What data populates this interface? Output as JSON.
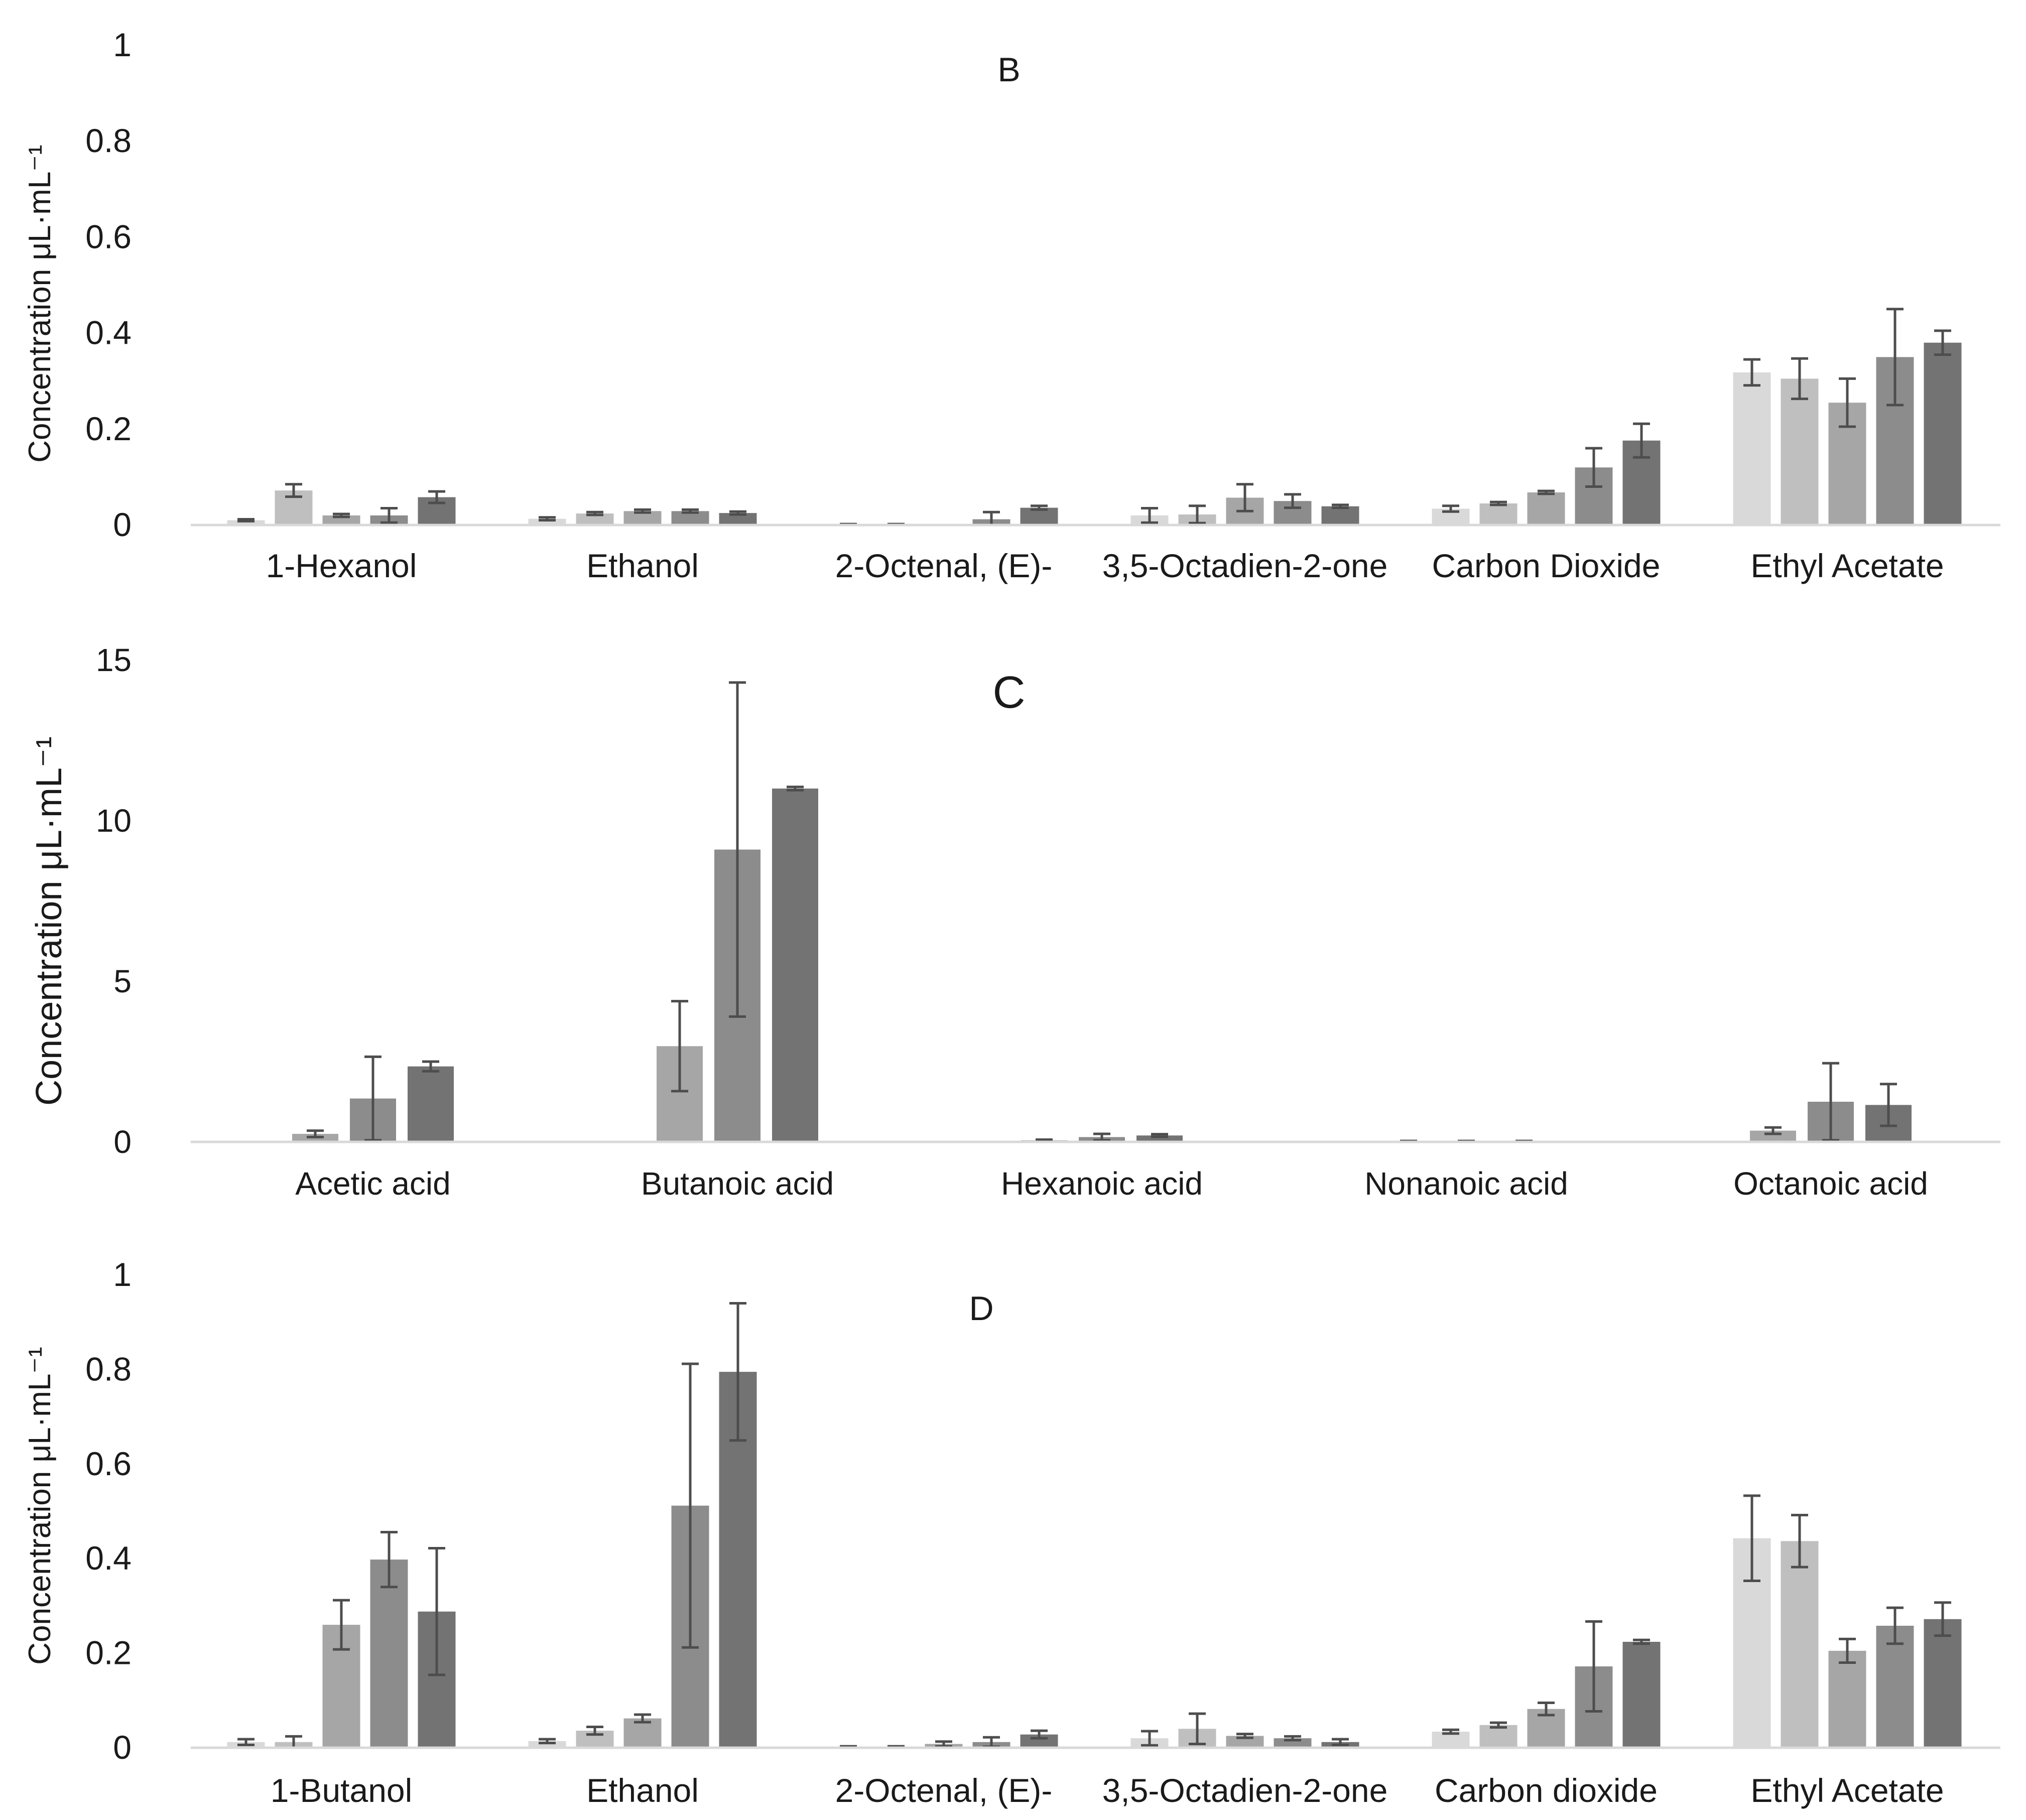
{
  "ylabel": "Concentration μL·mL⁻¹",
  "colors": [
    "#d9d9d9",
    "#bfbfbf",
    "#a6a6a6",
    "#8c8c8c",
    "#737373"
  ],
  "colors_c": [
    "#a6a6a6",
    "#8c8c8c",
    "#737373"
  ],
  "axis_color": "#d9d9d9",
  "error_color": "#4d4d4d",
  "chart_data": [
    {
      "type": "bar",
      "title": "B",
      "ylabel": "Concentration μL·mL⁻¹",
      "ylim": [
        0,
        1
      ],
      "yticks": [
        "0",
        "0.2",
        "0.4",
        "0.6",
        "0.8",
        "1"
      ],
      "ytick_values": [
        0,
        0.2,
        0.4,
        0.6,
        0.8,
        1
      ],
      "categories": [
        "1-Hexanol",
        "Ethanol",
        "2-Octenal, (E)-",
        "3,5-Octadien-2-one",
        "Carbon Dioxide",
        "Ethyl Acetate"
      ],
      "values": [
        [
          0.01,
          0.072,
          0.02,
          0.02,
          0.058
        ],
        [
          0.013,
          0.024,
          0.029,
          0.029,
          0.025
        ],
        [
          0.001,
          0.001,
          0.0,
          0.012,
          0.036
        ],
        [
          0.02,
          0.022,
          0.057,
          0.05,
          0.039
        ],
        [
          0.034,
          0.045,
          0.068,
          0.12,
          0.176
        ],
        [
          0.318,
          0.305,
          0.255,
          0.35,
          0.38
        ]
      ],
      "errors": [
        [
          0.002,
          0.013,
          0.003,
          0.015,
          0.012
        ],
        [
          0.003,
          0.003,
          0.003,
          0.003,
          0.003
        ],
        [
          0.001,
          0.001,
          0.0,
          0.015,
          0.004
        ],
        [
          0.015,
          0.018,
          0.028,
          0.014,
          0.003
        ],
        [
          0.006,
          0.003,
          0.003,
          0.04,
          0.035
        ],
        [
          0.027,
          0.042,
          0.05,
          0.1,
          0.025
        ]
      ]
    },
    {
      "type": "bar",
      "title": "C",
      "ylabel": "Concentration μL·mL⁻¹",
      "ylim": [
        0,
        15
      ],
      "yticks": [
        "0",
        "5",
        "10",
        "15"
      ],
      "ytick_values": [
        0,
        5,
        10,
        15
      ],
      "categories": [
        "Acetic acid",
        "Butanoic acid",
        "Hexanoic acid",
        "Nonanoic acid",
        "Octanoic acid"
      ],
      "values": [
        [
          0.25,
          1.35,
          2.35
        ],
        [
          2.98,
          9.1,
          11.0
        ],
        [
          0.05,
          0.15,
          0.2
        ],
        [
          0.02,
          0.02,
          0.02
        ],
        [
          0.35,
          1.25,
          1.15
        ]
      ],
      "errors": [
        [
          0.1,
          1.3,
          0.15
        ],
        [
          1.4,
          5.2,
          0.05
        ],
        [
          0.02,
          0.1,
          0.04
        ],
        [
          0.01,
          0.01,
          0.01
        ],
        [
          0.1,
          1.2,
          0.65
        ]
      ]
    },
    {
      "type": "bar",
      "title": "D",
      "ylabel": "Concentration μL·mL⁻¹",
      "ylim": [
        0,
        1
      ],
      "yticks": [
        "0",
        "0.2",
        "0.4",
        "0.6",
        "0.8",
        "1"
      ],
      "ytick_values": [
        0,
        0.2,
        0.4,
        0.6,
        0.8,
        1
      ],
      "categories": [
        "1-Butanol",
        "Ethanol",
        "2-Octenal, (E)-",
        "3,5-Octadien-2-one",
        "Carbon dioxide",
        "Ethyl Acetate"
      ],
      "values": [
        [
          0.012,
          0.012,
          0.26,
          0.398,
          0.288
        ],
        [
          0.014,
          0.036,
          0.062,
          0.512,
          0.795
        ],
        [
          0.002,
          0.002,
          0.008,
          0.012,
          0.028
        ],
        [
          0.02,
          0.04,
          0.025,
          0.02,
          0.012
        ],
        [
          0.034,
          0.048,
          0.082,
          0.172,
          0.224
        ],
        [
          0.443,
          0.437,
          0.205,
          0.258,
          0.272
        ]
      ],
      "errors": [
        [
          0.006,
          0.012,
          0.052,
          0.058,
          0.134
        ],
        [
          0.004,
          0.008,
          0.008,
          0.3,
          0.145
        ],
        [
          0.001,
          0.001,
          0.005,
          0.01,
          0.008
        ],
        [
          0.015,
          0.032,
          0.004,
          0.004,
          0.006
        ],
        [
          0.004,
          0.005,
          0.013,
          0.095,
          0.004
        ],
        [
          0.09,
          0.055,
          0.025,
          0.038,
          0.035
        ]
      ]
    }
  ]
}
